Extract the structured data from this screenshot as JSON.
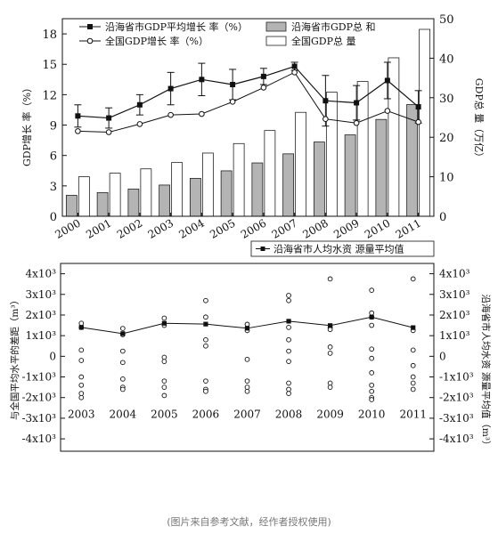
{
  "chart_data": [
    {
      "type": "bar",
      "x_categories": [
        "2000",
        "2001",
        "2002",
        "2003",
        "2004",
        "2005",
        "2006",
        "2007",
        "2008",
        "2009",
        "2010",
        "2011"
      ],
      "left_axis": {
        "label": "GDP增长 率（%）",
        "ylim": [
          0,
          19.5
        ],
        "ticks": [
          "0",
          "3",
          "6",
          "9",
          "12",
          "15",
          "18"
        ]
      },
      "right_axis": {
        "label": "GDP总 量（万亿）",
        "ylim": [
          0,
          50
        ],
        "ticks": [
          "0",
          "10",
          "20",
          "30",
          "40",
          "50"
        ]
      },
      "series": [
        {
          "name": "沿海省市GDP平均增长 率（%）",
          "kind": "line",
          "axis": "left",
          "marker": "filled-square",
          "values": [
            9.9,
            9.7,
            11.0,
            12.6,
            13.5,
            13.0,
            13.8,
            14.8,
            11.4,
            11.2,
            13.4,
            10.8
          ],
          "error": [
            1.1,
            1.0,
            1.0,
            1.6,
            1.6,
            1.5,
            0.8,
            0.4,
            2.5,
            1.7,
            1.8,
            1.6
          ]
        },
        {
          "name": "全国GDP增长 率（%）",
          "kind": "line",
          "axis": "left",
          "marker": "open-circle",
          "values": [
            8.4,
            8.3,
            9.1,
            10.0,
            10.1,
            11.3,
            12.7,
            14.2,
            9.6,
            9.2,
            10.4,
            9.3
          ]
        },
        {
          "name": "沿海省市GDP总 和",
          "kind": "bar",
          "axis": "right",
          "fill": "#b4b4b4",
          "values": [
            5.3,
            6.0,
            6.9,
            7.9,
            9.6,
            11.5,
            13.5,
            15.8,
            18.8,
            20.6,
            24.5,
            28.3
          ]
        },
        {
          "name": "全国GDP总 量",
          "kind": "bar",
          "axis": "right",
          "fill": "#ffffff",
          "values": [
            10.0,
            10.9,
            12.0,
            13.6,
            16.0,
            18.4,
            21.7,
            26.3,
            31.4,
            34.1,
            40.1,
            47.3
          ]
        }
      ]
    },
    {
      "type": "scatter",
      "x_categories": [
        "2003",
        "2004",
        "2005",
        "2006",
        "2007",
        "2008",
        "2009",
        "2010",
        "2011"
      ],
      "left_axis": {
        "label": "与全国平均水平的差距（m³）",
        "ylim": [
          -4600,
          4500
        ],
        "ticks": [
          "4x10³",
          "3x10³",
          "2x10³",
          "1x10³",
          "0",
          "-1x10³",
          "-2x10³",
          "-3x10³",
          "-4x10³"
        ]
      },
      "right_axis": {
        "label": "沿海省市人均水资 源量平均值（m³）",
        "ylim": [
          -4600,
          4500
        ],
        "ticks": [
          "4x10³",
          "3x10³",
          "2x10³",
          "1x10³",
          "0",
          "-1x10³",
          "-2x10³",
          "-3x10³",
          "-4x10³"
        ]
      },
      "series": [
        {
          "name": "沿海省市人均水资 源量平均值",
          "kind": "line",
          "marker": "filled-square",
          "values": [
            1400,
            1100,
            1600,
            1560,
            1360,
            1700,
            1490,
            1900,
            1390
          ]
        },
        {
          "name": "",
          "kind": "scatter",
          "marker": "open-circle",
          "points": [
            [
              1400,
              1600,
              300,
              -200,
              -1000,
              -1400,
              -1800,
              -2000
            ],
            [
              1350,
              1050,
              250,
              -300,
              -1100,
              -1500,
              -1600
            ],
            [
              1850,
              1500,
              -50,
              -250,
              -1200,
              -1500,
              -1900
            ],
            [
              2700,
              1900,
              800,
              500,
              -1200,
              -1600,
              -1700
            ],
            [
              1550,
              1250,
              -150,
              -1200,
              -1500,
              -1700
            ],
            [
              2950,
              2700,
              1400,
              800,
              250,
              -250,
              -1300,
              -1600,
              -1800
            ],
            [
              3750,
              1400,
              1300,
              450,
              150,
              -1300,
              -1500
            ],
            [
              3200,
              2100,
              1900,
              1500,
              350,
              -100,
              -800,
              -1400,
              -1700,
              -2000,
              -2100
            ],
            [
              3750,
              1250,
              300,
              -450,
              -1000,
              -1300,
              -1600
            ]
          ]
        }
      ]
    }
  ],
  "caption": "(图片来自参考文献，经作者授权使用)"
}
